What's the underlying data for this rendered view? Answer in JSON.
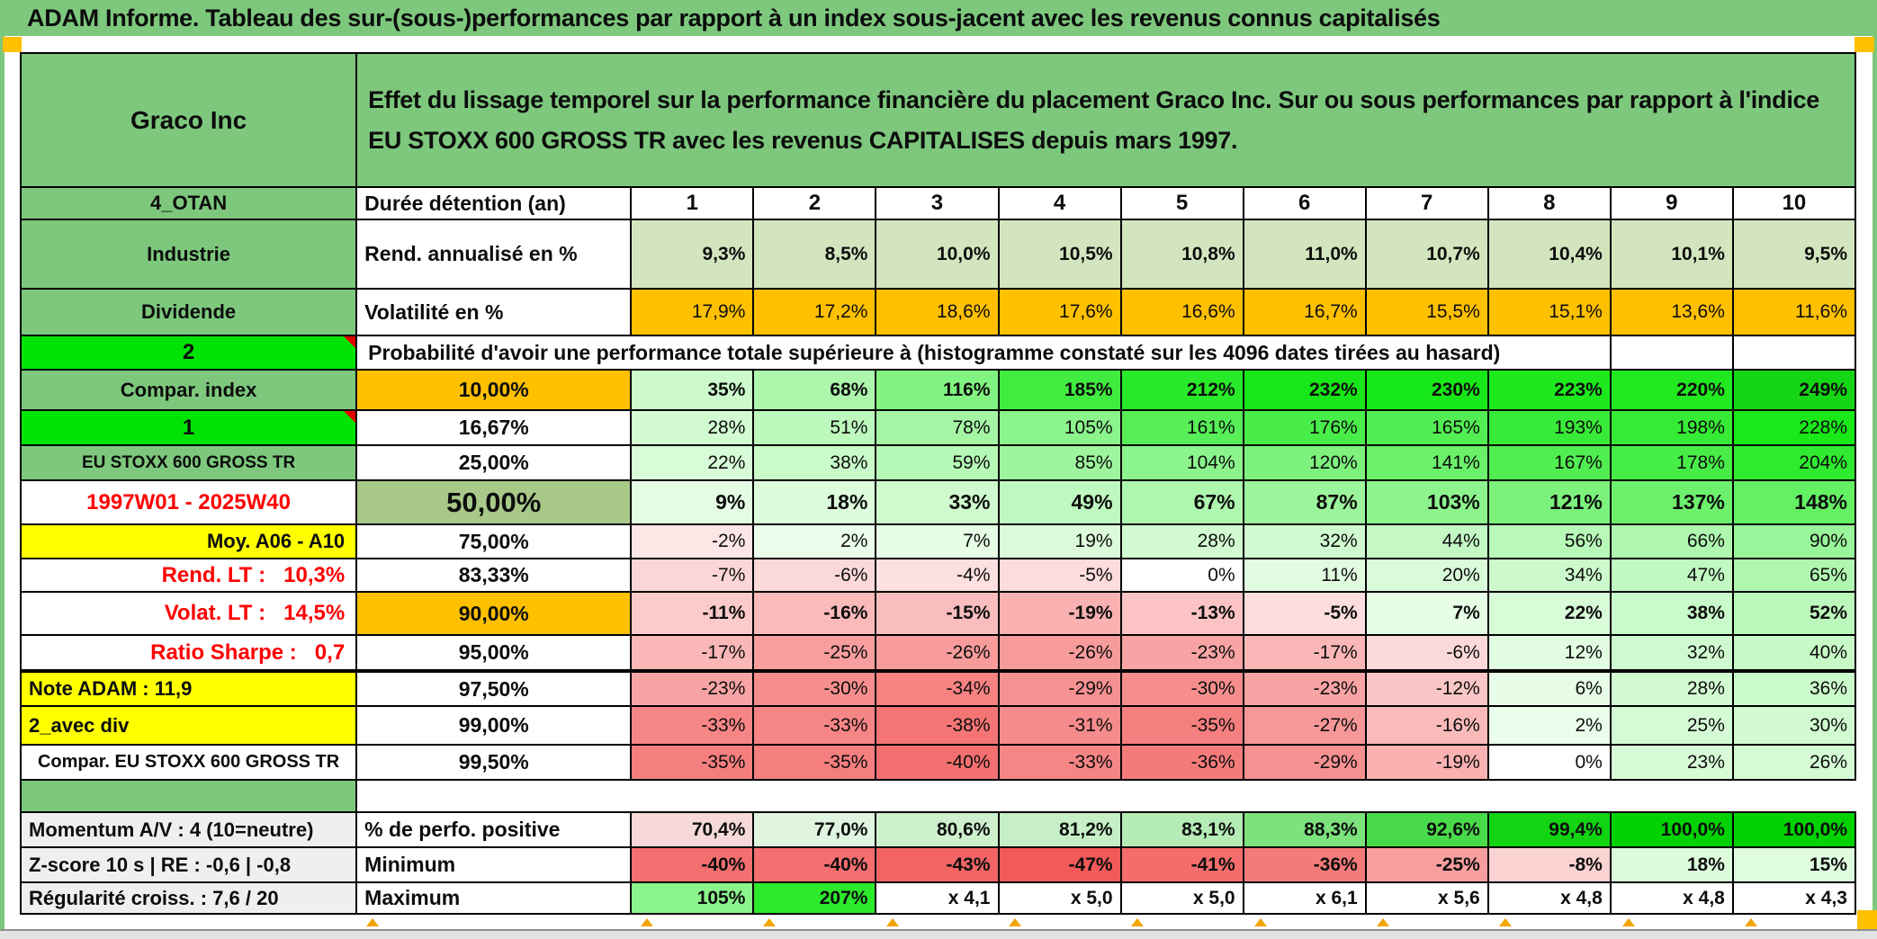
{
  "title": "ADAM Informe. Tableau des sur-(sous-)performances par rapport à un index sous-jacent avec les revenus connus capitalisés",
  "header": {
    "company": "Graco Inc",
    "description": "Effet du lissage temporel sur la performance financière du placement Graco Inc. Sur ou sous performances par rapport à l'indice EU STOXX 600 GROSS TR avec les revenus CAPITALISES depuis mars 1997."
  },
  "columns": [
    "1",
    "2",
    "3",
    "4",
    "5",
    "6",
    "7",
    "8",
    "9",
    "10"
  ],
  "colors": {
    "header_green": "#7dc87d",
    "bright_green": "#00e405",
    "orange": "#ffc000",
    "yellow": "#ffff00",
    "sage": "#a9c989",
    "pale_green_fill": "#d3e5bf",
    "gray_label": "#efefef",
    "red_text": "#fe0000",
    "marker_orange": "#f0a500"
  },
  "table": {
    "rows": [
      {
        "label": "4_OTAN",
        "b": "Durée détention (an)",
        "cells": [
          "1",
          "2",
          "3",
          "4",
          "5",
          "6",
          "7",
          "8",
          "9",
          "10"
        ]
      },
      {
        "label": "Industrie",
        "b": "Rend. annualisé en %",
        "cells": [
          "9,3%",
          "8,5%",
          "10,0%",
          "10,5%",
          "10,8%",
          "11,0%",
          "10,7%",
          "10,4%",
          "10,1%",
          "9,5%"
        ]
      },
      {
        "label": "Dividende",
        "b": "Volatilité en %",
        "cells": [
          "17,9%",
          "17,2%",
          "18,6%",
          "17,6%",
          "16,6%",
          "16,7%",
          "15,5%",
          "15,1%",
          "13,6%",
          "11,6%"
        ]
      },
      {
        "label": "2",
        "b": "Probabilité d'avoir une performance totale supérieure à (histogramme constaté sur les 4096 dates tirées au hasard)",
        "cells": [
          "",
          ""
        ]
      },
      {
        "label": "Compar. index",
        "b": "10,00%",
        "cells": [
          "35%",
          "68%",
          "116%",
          "185%",
          "212%",
          "232%",
          "230%",
          "223%",
          "220%",
          "249%"
        ]
      },
      {
        "label": "1",
        "b": "16,67%",
        "cells": [
          "28%",
          "51%",
          "78%",
          "105%",
          "161%",
          "176%",
          "165%",
          "193%",
          "198%",
          "228%"
        ]
      },
      {
        "label": "EU STOXX 600 GROSS TR",
        "b": "25,00%",
        "cells": [
          "22%",
          "38%",
          "59%",
          "85%",
          "104%",
          "120%",
          "141%",
          "167%",
          "178%",
          "204%"
        ]
      },
      {
        "label": "1997W01 - 2025W40",
        "b": "50,00%",
        "cells": [
          "9%",
          "18%",
          "33%",
          "49%",
          "67%",
          "87%",
          "103%",
          "121%",
          "137%",
          "148%"
        ]
      },
      {
        "label": "Moy. A06 - A10",
        "b": "75,00%",
        "cells": [
          "-2%",
          "2%",
          "7%",
          "19%",
          "28%",
          "32%",
          "44%",
          "56%",
          "66%",
          "90%"
        ]
      },
      {
        "label": "Rend. LT :   10,3%",
        "b": "83,33%",
        "cells": [
          "-7%",
          "-6%",
          "-4%",
          "-5%",
          "0%",
          "11%",
          "20%",
          "34%",
          "47%",
          "65%"
        ]
      },
      {
        "label": "Volat. LT :   14,5%",
        "b": "90,00%",
        "cells": [
          "-11%",
          "-16%",
          "-15%",
          "-19%",
          "-13%",
          "-5%",
          "7%",
          "22%",
          "38%",
          "52%"
        ]
      },
      {
        "label": "Ratio Sharpe :   0,7",
        "b": "95,00%",
        "cells": [
          "-17%",
          "-25%",
          "-26%",
          "-26%",
          "-23%",
          "-17%",
          "-6%",
          "12%",
          "32%",
          "40%"
        ]
      },
      {
        "label": "Note ADAM : 11,9",
        "b": "97,50%",
        "cells": [
          "-23%",
          "-30%",
          "-34%",
          "-29%",
          "-30%",
          "-23%",
          "-12%",
          "6%",
          "28%",
          "36%"
        ]
      },
      {
        "label": "2_avec div",
        "b": "99,00%",
        "cells": [
          "-33%",
          "-33%",
          "-38%",
          "-31%",
          "-35%",
          "-27%",
          "-16%",
          "2%",
          "25%",
          "30%"
        ]
      },
      {
        "label": "Compar. EU STOXX 600 GROSS TR",
        "b": "99,50%",
        "cells": [
          "-35%",
          "-35%",
          "-40%",
          "-33%",
          "-36%",
          "-29%",
          "-19%",
          "0%",
          "23%",
          "26%"
        ]
      },
      {
        "label": "",
        "b": "",
        "cells": []
      },
      {
        "label": "Momentum A/V : 4 (10=neutre)",
        "b": "% de perfo. positive",
        "cells": [
          "70,4%",
          "77,0%",
          "80,6%",
          "81,2%",
          "83,1%",
          "88,3%",
          "92,6%",
          "99,4%",
          "100,0%",
          "100,0%"
        ],
        "cell_colors": [
          "#f7d9d9",
          "#e0f5e0",
          "#cdf0cd",
          "#c6efc6",
          "#b5ecb5",
          "#7ce27c",
          "#49da49",
          "#12d412",
          "#02d202",
          "#02d202"
        ]
      },
      {
        "label": "Z-score 10 s | RE : -0,6 | -0,8",
        "b": "Minimum",
        "cells": [
          "-40%",
          "-40%",
          "-43%",
          "-47%",
          "-41%",
          "-36%",
          "-25%",
          "-8%",
          "18%",
          "15%"
        ]
      },
      {
        "label": "Régularité croiss. : 7,6 / 20",
        "b": "Maximum",
        "cells": [
          "105%",
          "207%",
          "x 4,1",
          "x 5,0",
          "x 5,0",
          "x 6,1",
          "x 5,6",
          "x 4,8",
          "x 4,8",
          "x 4,3"
        ]
      }
    ]
  }
}
